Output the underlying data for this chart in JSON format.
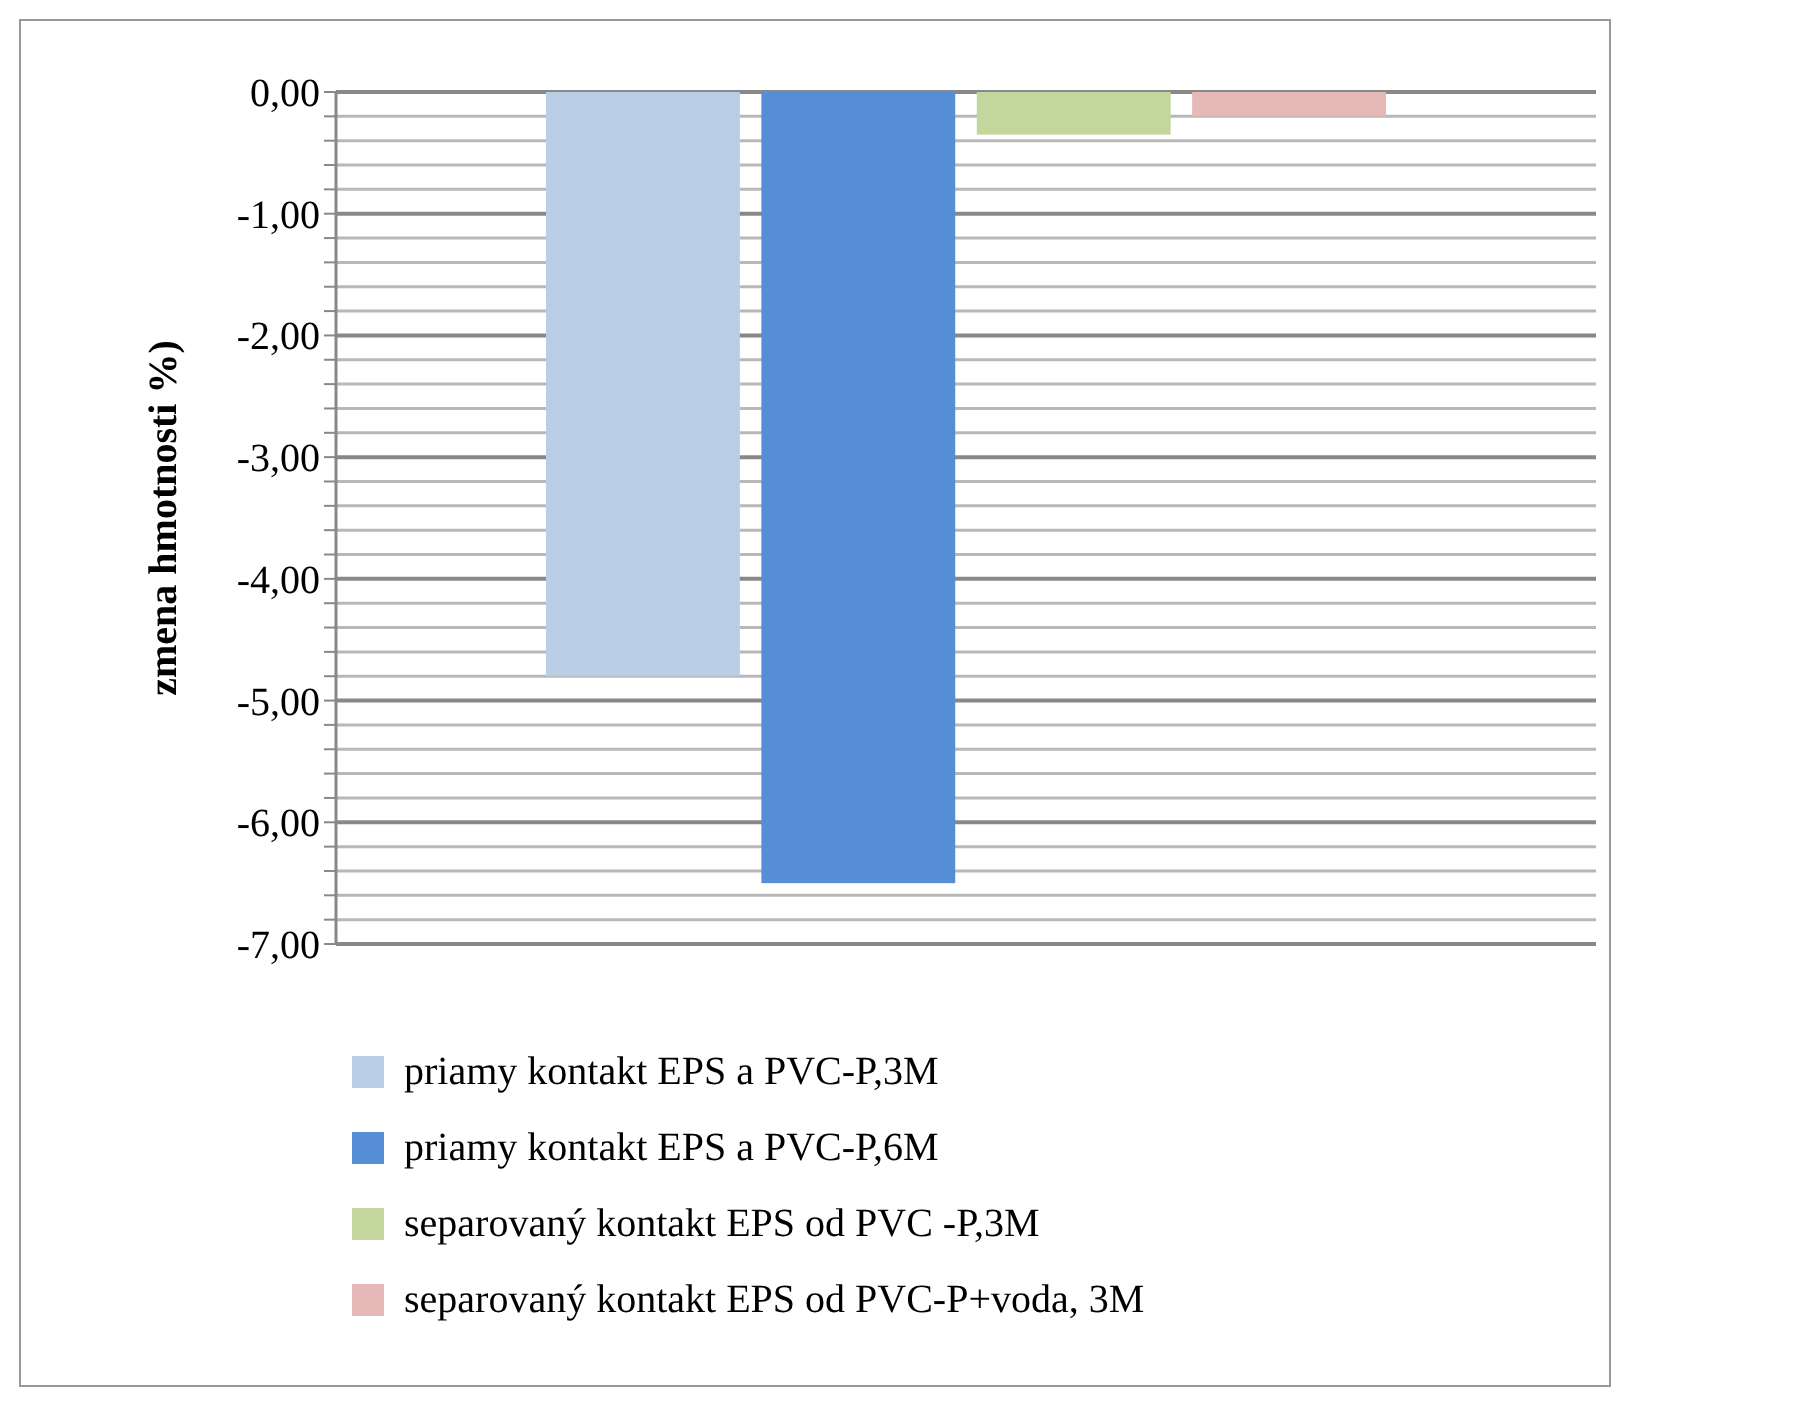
{
  "chart_data": {
    "type": "bar",
    "ylabel": "zmena hmotnosti %)",
    "categories": [
      null
    ],
    "series": [
      {
        "name": "priamy kontakt EPS a PVC-P,3M",
        "color": "#b9cde5",
        "values": [
          -4.8
        ]
      },
      {
        "name": "priamy kontakt EPS a PVC-P,6M",
        "color": "#558ed5",
        "values": [
          -6.5
        ]
      },
      {
        "name": "separovaný kontakt EPS od PVC -P,3M",
        "color": "#c3d69b",
        "values": [
          -0.35
        ]
      },
      {
        "name": "separovaný kontakt EPS od PVC-P+voda, 3M",
        "color": "#e6b9b8",
        "values": [
          -0.2
        ]
      }
    ],
    "ylim": [
      -7,
      0
    ],
    "yticks": [
      {
        "value": 0,
        "label": "0,00"
      },
      {
        "value": -0.2,
        "label": null
      },
      {
        "value": -0.4,
        "label": null
      },
      {
        "value": -0.6,
        "label": null
      },
      {
        "value": -0.8,
        "label": null
      },
      {
        "value": -1,
        "label": "-1,00"
      },
      {
        "value": -1.2,
        "label": null
      },
      {
        "value": -1.4,
        "label": null
      },
      {
        "value": -1.6,
        "label": null
      },
      {
        "value": -1.8,
        "label": null
      },
      {
        "value": -2,
        "label": "-2,00"
      },
      {
        "value": -2.2,
        "label": null
      },
      {
        "value": -2.4,
        "label": null
      },
      {
        "value": -2.6,
        "label": null
      },
      {
        "value": -2.8,
        "label": null
      },
      {
        "value": -3,
        "label": "-3,00"
      },
      {
        "value": -3.2,
        "label": null
      },
      {
        "value": -3.4,
        "label": null
      },
      {
        "value": -3.6,
        "label": null
      },
      {
        "value": -3.8,
        "label": null
      },
      {
        "value": -4,
        "label": "-4,00"
      },
      {
        "value": -4.2,
        "label": null
      },
      {
        "value": -4.4,
        "label": null
      },
      {
        "value": -4.6,
        "label": null
      },
      {
        "value": -4.8,
        "label": null
      },
      {
        "value": -5,
        "label": "-5,00"
      },
      {
        "value": -5.2,
        "label": null
      },
      {
        "value": -5.4,
        "label": null
      },
      {
        "value": -5.6,
        "label": null
      },
      {
        "value": -5.8,
        "label": null
      },
      {
        "value": -6,
        "label": "-6,00"
      },
      {
        "value": -6.2,
        "label": null
      },
      {
        "value": -6.4,
        "label": null
      },
      {
        "value": -6.6,
        "label": null
      },
      {
        "value": -6.8,
        "label": null
      },
      {
        "value": -7,
        "label": "-7,00"
      }
    ],
    "grid": "y",
    "legend": "bottom"
  }
}
